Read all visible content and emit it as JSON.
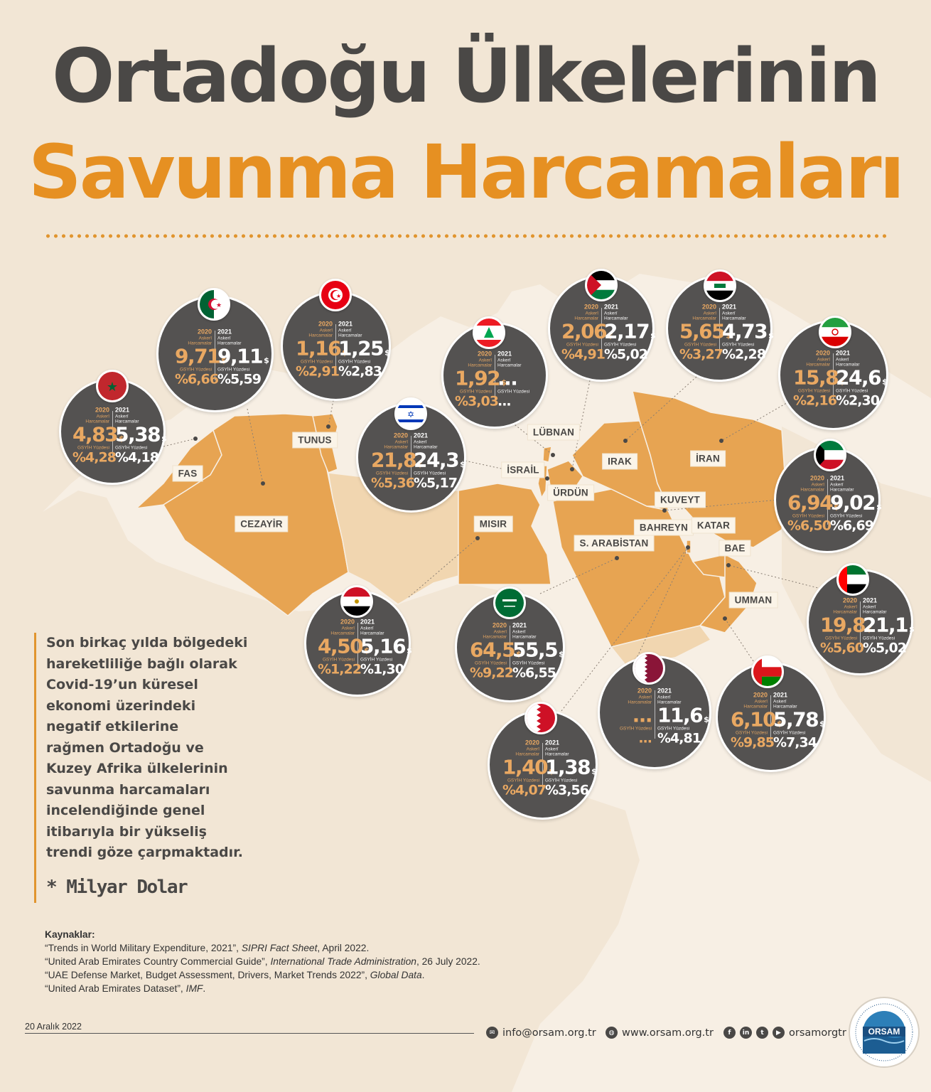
{
  "title_line1": "Ortadoğu Ülkelerinin",
  "title_line2": "Savunma Harcamaları",
  "colors": {
    "accent": "#e69022",
    "dark": "#4a4846",
    "bubble": "#545251",
    "land": "#e7a452"
  },
  "labels": {
    "fas": "FAS",
    "cezayir": "CEZAYİR",
    "tunus": "TUNUS",
    "misir": "MISIR",
    "israil": "İSRAİL",
    "lubnan": "LÜBNAN",
    "urdun": "ÜRDÜN",
    "irak": "IRAK",
    "iran": "İRAN",
    "kuveyt": "KUVEYT",
    "bahreyn": "BAHREYN",
    "katar": "KATAR",
    "s_arabistan": "S. ARABİSTAN",
    "bae": "BAE",
    "umman": "UMMAN"
  },
  "bubbles_text": {
    "year2020": "2020",
    "year2021": "2021",
    "spending": "Askerî Harcamalar",
    "gdp": "GSYİH Yüzdesi",
    "usd": "$"
  },
  "countries": {
    "fas": {
      "s20": "4,83",
      "s21": "5,38",
      "g20": "%4,28",
      "g21": "%4,18",
      "flag": "morocco-flag"
    },
    "cezayir": {
      "s20": "9,71",
      "s21": "9,11",
      "g20": "%6,66",
      "g21": "%5,59",
      "flag": "algeria-flag"
    },
    "tunus": {
      "s20": "1,16",
      "s21": "1,25",
      "g20": "%2,91",
      "g21": "%2,83",
      "flag": "tunisia-flag"
    },
    "lubnan": {
      "s20": "1,92",
      "s21": "...",
      "g20": "%3,03",
      "g21": "...",
      "flag": "lebanon-flag"
    },
    "israil": {
      "s20": "21,8",
      "s21": "24,3",
      "g20": "%5,36",
      "g21": "%5,17",
      "flag": "israel-flag"
    },
    "urdun": {
      "s20": "2,06",
      "s21": "2,17",
      "g20": "%4,91",
      "g21": "%5,02",
      "flag": "jordan-flag"
    },
    "irak": {
      "s20": "5,65",
      "s21": "4,73",
      "g20": "%3,27",
      "g21": "%2,28",
      "flag": "iraq-flag"
    },
    "iran": {
      "s20": "15,8",
      "s21": "24,6",
      "g20": "%2,16",
      "g21": "%2,30",
      "flag": "iran-flag"
    },
    "kuveyt": {
      "s20": "6,94",
      "s21": "9,02",
      "g20": "%6,50",
      "g21": "%6,69",
      "flag": "kuwait-flag"
    },
    "bae": {
      "s20": "19,8",
      "s21": "21,1",
      "g20": "%5,60",
      "g21": "%5,02",
      "flag": "uae-flag"
    },
    "umman": {
      "s20": "6,10",
      "s21": "5,78",
      "g20": "%9,85",
      "g21": "%7,34",
      "flag": "oman-flag"
    },
    "katar": {
      "s20": "...",
      "s21": "11,6",
      "g20": "...",
      "g21": "%4,81",
      "flag": "qatar-flag"
    },
    "bahreyn": {
      "s20": "1,40",
      "s21": "1,38",
      "g20": "%4,07",
      "g21": "%3,56",
      "flag": "bahrain-flag"
    },
    "s_arabistan": {
      "s20": "64,5",
      "s21": "55,5",
      "g20": "%9,22",
      "g21": "%6,55",
      "flag": "saudi-flag"
    },
    "misir": {
      "s20": "4,50",
      "s21": "5,16",
      "g20": "%1,22",
      "g21": "%1,30",
      "flag": "egypt-flag"
    }
  },
  "intro": "Son birkaç yılda bölgedeki hareketliliğe bağlı olarak Covid-19’un küresel ekonomi üzerindeki negatif etkilerine rağmen Ortadoğu ve Kuzey Afrika ülkelerinin savunma harcamaları incelendiğinde genel itibarıyla bir yükseliş trendi göze çarpmaktadır.",
  "intro_lines": [
    "Son birkaç yılda bölgedeki",
    "hareketliliğe bağlı olarak",
    "Covid-19’un küresel",
    "ekonomi üzerindeki",
    "negatif etkilerine",
    "rağmen Ortadoğu ve",
    "Kuzey Afrika ülkelerinin",
    "savunma harcamaları",
    "incelendiğinde genel",
    "itibarıyla bir yükseliş",
    "trendi göze çarpmaktadır."
  ],
  "unit_note": "* Milyar Dolar",
  "sources": {
    "heading": "Kaynaklar:",
    "items": [
      {
        "pre": "“Trends in World Military Expenditure, 2021”, ",
        "ital": "SIPRI Fact Sheet",
        "post": ", April 2022."
      },
      {
        "pre": "“United Arab Emirates Country Commercial Guide”, ",
        "ital": "International Trade Administration",
        "post": ", 26 July 2022."
      },
      {
        "pre": "“UAE Defense Market, Budget Assessment, Drivers, Market Trends 2022”, ",
        "ital": "Global Data",
        "post": "."
      },
      {
        "pre": "“United Arab Emirates Dataset”, ",
        "ital": "IMF",
        "post": "."
      }
    ]
  },
  "footer": {
    "date": "20 Aralık 2022",
    "email": "info@orsam.org.tr",
    "web": "www.orsam.org.tr",
    "social": "orsamorgtr",
    "logo_text": "ORSAM"
  }
}
